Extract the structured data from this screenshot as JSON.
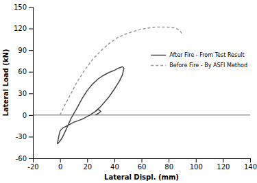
{
  "chart_data": {
    "type": "line",
    "x_label": "Lateral Displ. (mm)",
    "y_label": "Lateral Load (kN)",
    "xlim": [
      -20,
      140
    ],
    "ylim": [
      -60,
      150
    ],
    "xticks": [
      -20,
      0,
      20,
      40,
      60,
      80,
      100,
      120,
      140
    ],
    "yticks": [
      -60,
      -30,
      0,
      30,
      60,
      90,
      120,
      150
    ],
    "grid": false,
    "legend": "upper right",
    "hlines": [
      0
    ],
    "series": [
      {
        "name": "Before Fire - By ASFI Method",
        "color": "#999999",
        "line_style": "dashed",
        "x": [
          0,
          3,
          7,
          12,
          18,
          24,
          30,
          36,
          42,
          48,
          54,
          60,
          66,
          72,
          78,
          84,
          88,
          90
        ],
        "values": [
          0,
          12,
          26,
          44,
          62,
          77,
          89,
          99,
          107,
          112,
          116,
          119,
          121,
          122,
          122,
          121,
          118,
          112
        ]
      },
      {
        "name": "After Fire - From Test Result",
        "color": "#444444",
        "line_style": "solid",
        "x": [
          -2,
          -1,
          0,
          2,
          5,
          8,
          12,
          16,
          20,
          24,
          28,
          32,
          36,
          40,
          43,
          46,
          47,
          46,
          44,
          42,
          40,
          36,
          30,
          26,
          22,
          16,
          10,
          6,
          2,
          0,
          -1,
          -2
        ],
        "values": [
          -40,
          -38,
          -36,
          -30,
          -18,
          -5,
          8,
          22,
          34,
          43,
          50,
          55,
          59,
          62,
          65,
          67,
          65,
          56,
          48,
          42,
          36,
          25,
          12,
          5,
          0,
          -6,
          -10,
          -14,
          -18,
          -22,
          -30,
          -40
        ]
      },
      {
        "color": "#444444",
        "line_style": "solid",
        "x": [
          26,
          28,
          30,
          28,
          26
        ],
        "values": [
          5,
          8,
          5,
          2,
          0
        ]
      }
    ]
  }
}
